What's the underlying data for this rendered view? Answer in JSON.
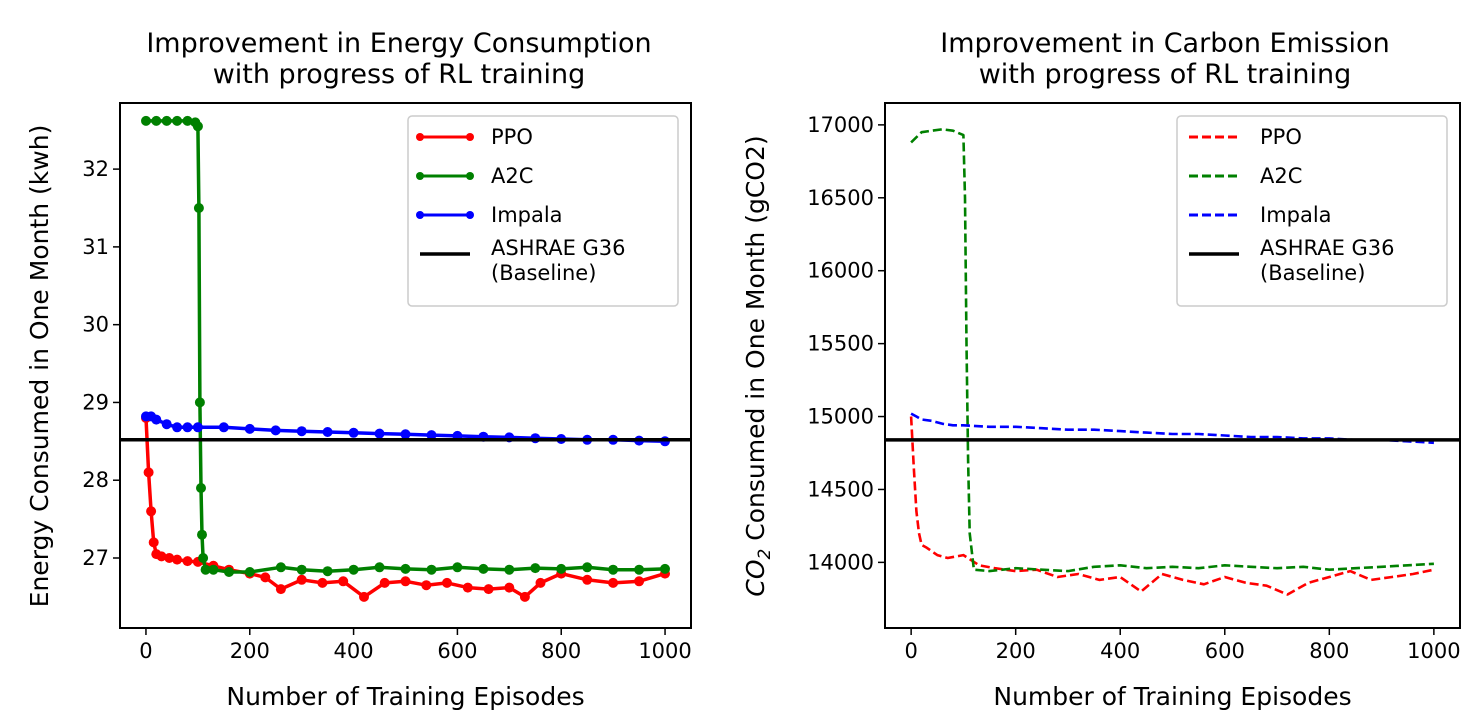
{
  "chart_data": [
    {
      "type": "line",
      "title": [
        "Improvement in Energy Consumption",
        "with progress of RL training"
      ],
      "xlabel": "Number of Training Episodes",
      "ylabel": "Energy Consumed in One Month (kwh)",
      "xlim": [
        -50,
        1050
      ],
      "ylim": [
        26.1,
        32.85
      ],
      "xticks": [
        0,
        200,
        400,
        600,
        800,
        1000
      ],
      "xtick_labels": [
        "0",
        "200",
        "400",
        "600",
        "800",
        "1000"
      ],
      "yticks": [
        27,
        28,
        29,
        30,
        31,
        32
      ],
      "ytick_labels": [
        "27",
        "28",
        "29",
        "30",
        "31",
        "32"
      ],
      "legend_position": "top-right",
      "baseline": {
        "name": "ASHRAE G36\n(Baseline)",
        "value": 28.52,
        "color": "#000000"
      },
      "series": [
        {
          "name": "PPO",
          "color": "#ff0000",
          "marker": true,
          "dashed": false,
          "x": [
            0,
            5,
            10,
            15,
            20,
            30,
            45,
            60,
            80,
            100,
            130,
            160,
            200,
            230,
            260,
            300,
            340,
            380,
            420,
            460,
            500,
            540,
            580,
            620,
            660,
            700,
            730,
            760,
            800,
            850,
            900,
            950,
            1000
          ],
          "values": [
            28.8,
            28.1,
            27.6,
            27.2,
            27.05,
            27.02,
            27.0,
            26.98,
            26.96,
            26.95,
            26.9,
            26.85,
            26.8,
            26.75,
            26.6,
            26.72,
            26.68,
            26.7,
            26.5,
            26.68,
            26.7,
            26.65,
            26.68,
            26.62,
            26.6,
            26.62,
            26.5,
            26.68,
            26.8,
            26.72,
            26.68,
            26.7,
            26.8
          ]
        },
        {
          "name": "A2C",
          "color": "#008000",
          "marker": true,
          "dashed": false,
          "x": [
            0,
            20,
            40,
            60,
            80,
            95,
            100,
            102,
            104,
            106,
            108,
            110,
            115,
            130,
            160,
            200,
            260,
            300,
            350,
            400,
            450,
            500,
            550,
            600,
            650,
            700,
            750,
            800,
            850,
            900,
            950,
            1000
          ],
          "values": [
            32.62,
            32.62,
            32.62,
            32.62,
            32.62,
            32.6,
            32.55,
            31.5,
            29.0,
            27.9,
            27.3,
            27.0,
            26.85,
            26.85,
            26.82,
            26.82,
            26.88,
            26.85,
            26.83,
            26.85,
            26.88,
            26.86,
            26.85,
            26.88,
            26.86,
            26.85,
            26.87,
            26.86,
            26.88,
            26.85,
            26.85,
            26.86
          ]
        },
        {
          "name": "Impala",
          "color": "#0000ff",
          "marker": true,
          "dashed": false,
          "x": [
            0,
            10,
            20,
            40,
            60,
            80,
            100,
            150,
            200,
            250,
            300,
            350,
            400,
            450,
            500,
            550,
            600,
            650,
            700,
            750,
            800,
            850,
            900,
            950,
            1000
          ],
          "values": [
            28.82,
            28.82,
            28.78,
            28.72,
            28.68,
            28.68,
            28.68,
            28.68,
            28.66,
            28.64,
            28.63,
            28.62,
            28.61,
            28.6,
            28.59,
            28.58,
            28.57,
            28.56,
            28.55,
            28.54,
            28.53,
            28.52,
            28.52,
            28.51,
            28.5
          ]
        }
      ]
    },
    {
      "type": "line",
      "title": [
        "Improvement in Carbon Emission",
        "with progress of RL training"
      ],
      "xlabel": "Number of Training Episodes",
      "ylabel_parts": [
        "CO",
        "2",
        " Consumed in One Month (gCO2)"
      ],
      "xlim": [
        -50,
        1050
      ],
      "ylim": [
        13550,
        17150
      ],
      "xticks": [
        0,
        200,
        400,
        600,
        800,
        1000
      ],
      "xtick_labels": [
        "0",
        "200",
        "400",
        "600",
        "800",
        "1000"
      ],
      "yticks": [
        14000,
        14500,
        15000,
        15500,
        16000,
        16500,
        17000
      ],
      "ytick_labels": [
        "14000",
        "14500",
        "15000",
        "15500",
        "16000",
        "16500",
        "17000"
      ],
      "legend_position": "top-right",
      "baseline": {
        "name": "ASHRAE G36\n(Baseline)",
        "value": 14840,
        "color": "#000000"
      },
      "series": [
        {
          "name": "PPO",
          "color": "#ff0000",
          "marker": false,
          "dashed": true,
          "x": [
            0,
            5,
            10,
            15,
            20,
            30,
            50,
            70,
            100,
            130,
            160,
            200,
            240,
            280,
            320,
            360,
            400,
            440,
            480,
            520,
            560,
            600,
            640,
            680,
            720,
            760,
            800,
            840,
            880,
            920,
            960,
            1000
          ],
          "values": [
            15000,
            14650,
            14350,
            14200,
            14120,
            14100,
            14050,
            14030,
            14050,
            13980,
            13960,
            13940,
            13950,
            13900,
            13920,
            13880,
            13900,
            13800,
            13920,
            13880,
            13850,
            13900,
            13860,
            13840,
            13780,
            13860,
            13900,
            13940,
            13880,
            13900,
            13920,
            13950
          ]
        },
        {
          "name": "A2C",
          "color": "#008000",
          "marker": false,
          "dashed": true,
          "x": [
            0,
            20,
            40,
            60,
            80,
            100,
            103,
            106,
            109,
            112,
            120,
            150,
            200,
            250,
            300,
            350,
            400,
            450,
            500,
            550,
            600,
            650,
            700,
            750,
            800,
            850,
            900,
            950,
            1000
          ],
          "values": [
            16880,
            16950,
            16960,
            16970,
            16960,
            16930,
            16500,
            15500,
            14700,
            14200,
            13950,
            13940,
            13960,
            13950,
            13940,
            13970,
            13980,
            13960,
            13970,
            13960,
            13980,
            13970,
            13960,
            13970,
            13950,
            13960,
            13970,
            13980,
            13990
          ]
        },
        {
          "name": "Impala",
          "color": "#0000ff",
          "marker": false,
          "dashed": true,
          "x": [
            0,
            10,
            20,
            40,
            60,
            80,
            100,
            150,
            200,
            250,
            300,
            350,
            400,
            450,
            500,
            550,
            600,
            650,
            700,
            750,
            800,
            850,
            900,
            950,
            1000
          ],
          "values": [
            15020,
            15000,
            14980,
            14970,
            14950,
            14940,
            14940,
            14930,
            14930,
            14920,
            14910,
            14910,
            14900,
            14890,
            14880,
            14880,
            14870,
            14860,
            14860,
            14850,
            14850,
            14840,
            14840,
            14830,
            14820
          ]
        }
      ]
    }
  ]
}
